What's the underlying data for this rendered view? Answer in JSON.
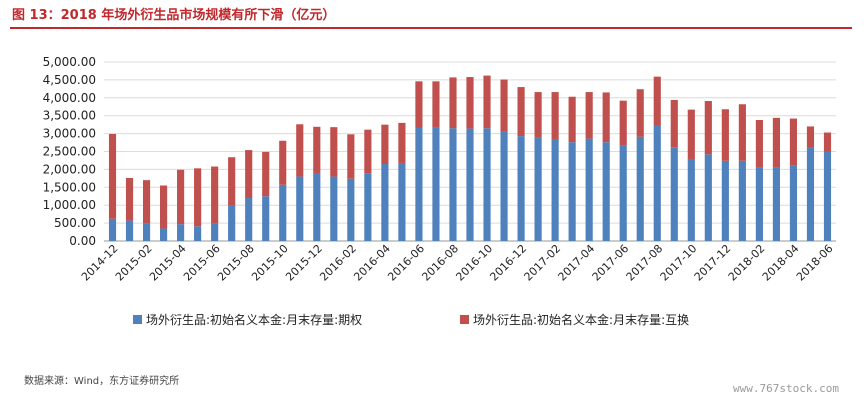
{
  "header": {
    "title": "图 13：2018 年场外衍生品市场规模有所下滑（亿元）"
  },
  "footer": {
    "source": "数据来源：Wind，东方证券研究所",
    "watermark": "www.767stock.com"
  },
  "colors": {
    "options": "#4f81bd",
    "swaps": "#c0504d",
    "title_red": "#c0282c"
  },
  "chart_data": {
    "type": "bar",
    "stacked": true,
    "title": "2018 年场外衍生品市场规模有所下滑（亿元）",
    "ylim": [
      0,
      5000
    ],
    "yticks": [
      "0.00",
      "500.00",
      "1,000.00",
      "1,500.00",
      "2,000.00",
      "2,500.00",
      "3,000.00",
      "3,500.00",
      "4,000.00",
      "4,500.00",
      "5,000.00"
    ],
    "ytick_values": [
      0,
      500,
      1000,
      1500,
      2000,
      2500,
      3000,
      3500,
      4000,
      4500,
      5000
    ],
    "grid": true,
    "legend_position": "bottom",
    "categories": [
      "2014-12",
      "2015-01",
      "2015-02",
      "2015-03",
      "2015-04",
      "2015-05",
      "2015-06",
      "2015-07",
      "2015-08",
      "2015-09",
      "2015-10",
      "2015-11",
      "2015-12",
      "2016-01",
      "2016-02",
      "2016-03",
      "2016-04",
      "2016-05",
      "2016-06",
      "2016-07",
      "2016-08",
      "2016-09",
      "2016-10",
      "2016-11",
      "2016-12",
      "2017-01",
      "2017-02",
      "2017-03",
      "2017-04",
      "2017-05",
      "2017-06",
      "2017-07",
      "2017-08",
      "2017-09",
      "2017-10",
      "2017-11",
      "2017-12",
      "2018-01",
      "2018-02",
      "2018-03",
      "2018-04",
      "2018-05",
      "2018-06"
    ],
    "x_tick_labels": [
      "2014-12",
      "2015-02",
      "2015-04",
      "2015-06",
      "2015-08",
      "2015-10",
      "2015-12",
      "2016-02",
      "2016-04",
      "2016-06",
      "2016-08",
      "2016-10",
      "2016-12",
      "2017-02",
      "2017-04",
      "2017-06",
      "2017-08",
      "2017-10",
      "2017-12",
      "2018-02",
      "2018-04",
      "2018-06"
    ],
    "series": [
      {
        "name": "场外衍生品:初始名义本金:月末存量:期权",
        "values": [
          620,
          570,
          480,
          350,
          470,
          410,
          500,
          980,
          1200,
          1250,
          1570,
          1800,
          1900,
          1800,
          1740,
          1890,
          2150,
          2180,
          3170,
          3160,
          3150,
          3140,
          3150,
          3060,
          2930,
          2880,
          2850,
          2760,
          2860,
          2760,
          2670,
          2910,
          3240,
          2620,
          2290,
          2420,
          2240,
          2240,
          2050,
          2050,
          2100,
          2610,
          2500
        ]
      },
      {
        "name": "场外衍生品:初始名义本金:月末存量:互换",
        "values": [
          2370,
          1190,
          1220,
          1200,
          1520,
          1620,
          1580,
          1360,
          1340,
          1240,
          1230,
          1460,
          1290,
          1380,
          1240,
          1220,
          1100,
          1120,
          1290,
          1300,
          1420,
          1440,
          1470,
          1450,
          1370,
          1280,
          1310,
          1270,
          1300,
          1390,
          1250,
          1330,
          1350,
          1320,
          1380,
          1490,
          1440,
          1580,
          1330,
          1390,
          1320,
          590,
          530
        ]
      }
    ]
  }
}
